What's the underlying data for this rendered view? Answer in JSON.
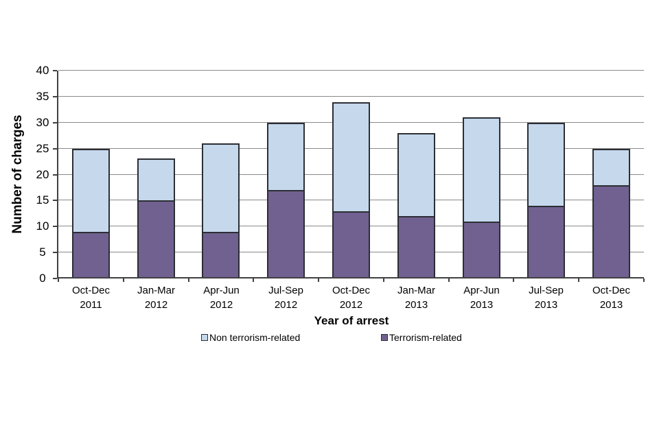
{
  "chart_data": {
    "type": "bar",
    "stacked": true,
    "title": "",
    "xlabel": "Year of arrest",
    "ylabel": "Number of charges",
    "ylim": [
      0,
      40
    ],
    "ytick_step": 5,
    "y_tick_labels": [
      "0",
      "5",
      "10",
      "15",
      "20",
      "25",
      "30",
      "35",
      "40"
    ],
    "grid": true,
    "legend_position": "bottom",
    "categories": [
      "Oct-Dec\n2011",
      "Jan-Mar\n2012",
      "Apr-Jun\n2012",
      "Jul-Sep\n2012",
      "Oct-Dec\n2012",
      "Jan-Mar\n2013",
      "Apr-Jun\n2013",
      "Jul-Sep\n2013",
      "Oct-Dec\n2013"
    ],
    "series": [
      {
        "name": "Terrorism-related",
        "color": "#716190",
        "values": [
          9,
          15,
          9,
          17,
          13,
          12,
          11,
          14,
          18
        ]
      },
      {
        "name": "Non terrorism-related",
        "color": "#C5D8EC",
        "values": [
          16,
          8,
          17,
          13,
          21,
          16,
          20,
          16,
          7
        ]
      }
    ],
    "stack_totals": [
      25,
      23,
      26,
      30,
      34,
      28,
      31,
      30,
      25
    ],
    "legend": [
      {
        "label": "Non terrorism-related",
        "color": "#C5D8EC"
      },
      {
        "label": "Terrorism-related",
        "color": "#716190"
      }
    ]
  },
  "colors": {
    "background": "#ffffff",
    "bar_border": "#2b2e34",
    "gridline": "#898989",
    "axis_line": "#404040",
    "text": "#000000"
  }
}
